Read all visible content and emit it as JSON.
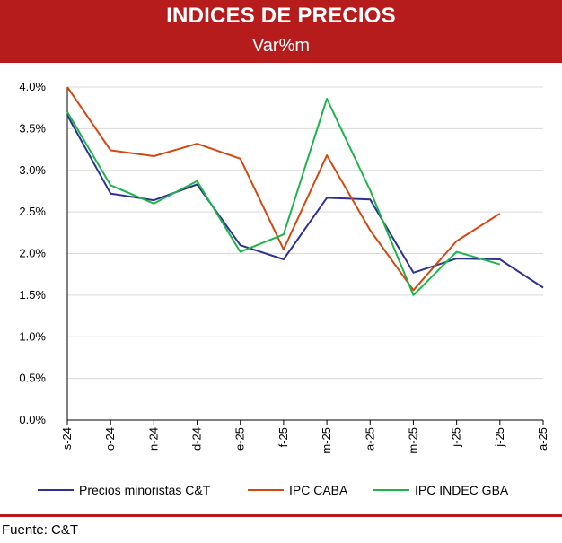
{
  "header": {
    "title": "INDICES DE PRECIOS",
    "subtitle": "Var%m",
    "background": "#b71c1c"
  },
  "footer": {
    "source": "Fuente: C&T"
  },
  "chart_data": {
    "type": "line",
    "title": "INDICES DE PRECIOS",
    "subtitle": "Var%m",
    "categories": [
      "s-24",
      "o-24",
      "n-24",
      "d-24",
      "e-25",
      "f-25",
      "m-25",
      "a-25",
      "m-25",
      "j-25",
      "j-25",
      "a-25"
    ],
    "ylim": [
      0,
      4
    ],
    "yticks": [
      "0.0%",
      "0.5%",
      "1.0%",
      "1.5%",
      "2.0%",
      "2.5%",
      "3.0%",
      "3.5%",
      "4.0%"
    ],
    "grid": true,
    "legend_position": "bottom",
    "series": [
      {
        "name": "Precios minoristas C&T",
        "color": "#2e3192",
        "values": [
          3.66,
          2.72,
          2.64,
          2.83,
          2.1,
          1.93,
          2.67,
          2.65,
          1.77,
          1.94,
          1.93,
          1.59
        ]
      },
      {
        "name": "IPC CABA",
        "color": "#d4480f",
        "values": [
          4.0,
          3.24,
          3.17,
          3.32,
          3.14,
          2.05,
          3.18,
          2.28,
          1.56,
          2.15,
          2.48,
          null
        ]
      },
      {
        "name": "IPC INDEC GBA",
        "color": "#1db54a",
        "values": [
          3.7,
          2.82,
          2.6,
          2.87,
          2.02,
          2.23,
          3.86,
          2.76,
          1.5,
          2.02,
          1.87,
          null
        ]
      }
    ]
  }
}
